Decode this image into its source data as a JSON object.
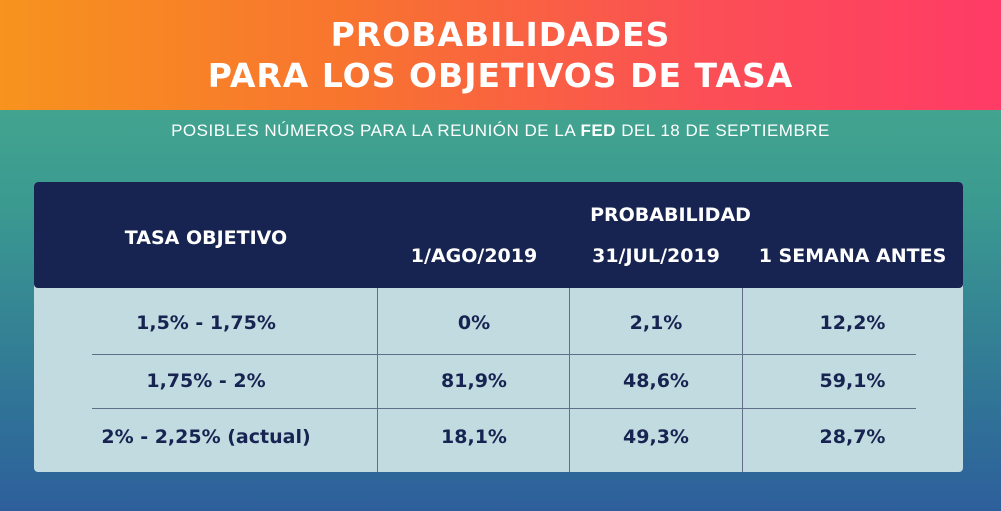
{
  "header": {
    "title_line1": "PROBABILIDADES",
    "title_line2": "PARA LOS OBJETIVOS DE TASA",
    "subtitle_prefix": "POSIBLES NÚMEROS PARA LA REUNIÓN DE LA",
    "subtitle_bold": "FED",
    "subtitle_suffix": "DEL 18 DE SEPTIEMBRE"
  },
  "colors": {
    "header_start": "#f7931e",
    "header_end": "#ff3b66",
    "table_header_bg": "#172451",
    "table_body_bg": "#c1dbe0"
  },
  "chart_data": {
    "type": "table",
    "title": "PROBABILIDADES PARA LOS OBJETIVOS DE TASA",
    "row_header": "TASA OBJETIVO",
    "group_header": "PROBABILIDAD",
    "columns": [
      "1/AGO/2019",
      "31/JUL/2019",
      "1 SEMANA ANTES"
    ],
    "rows": [
      {
        "label": "1,5% - 1,75%",
        "values": [
          "0%",
          "2,1%",
          "12,2%"
        ]
      },
      {
        "label": "1,75% - 2%",
        "values": [
          "81,9%",
          "48,6%",
          "59,1%"
        ]
      },
      {
        "label": "2% - 2,25% (actual)",
        "values": [
          "18,1%",
          "49,3%",
          "28,7%"
        ]
      }
    ]
  }
}
